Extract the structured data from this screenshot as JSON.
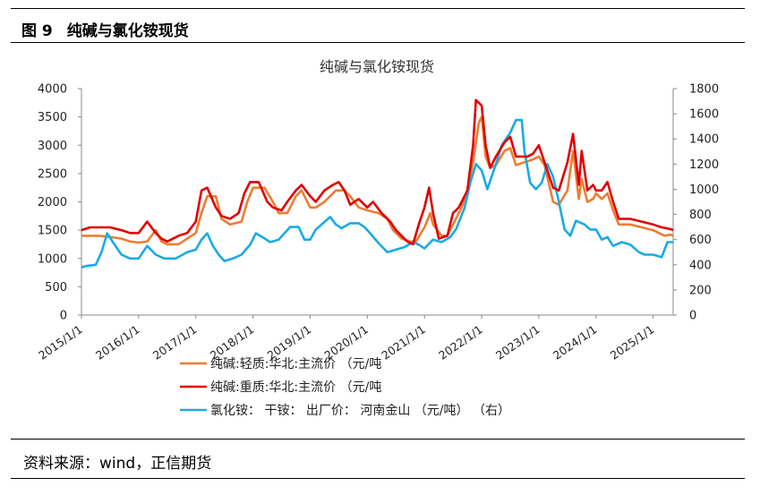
{
  "figure": {
    "number": "图 9",
    "title": "纯碱与氯化铵现货",
    "source": "资料来源：wind，正信期货"
  },
  "chart_data": {
    "type": "line",
    "title": "纯碱与氯化铵现货",
    "x_tick_labels": [
      "2015/1/1",
      "2016/1/1",
      "2017/1/1",
      "2018/1/1",
      "2019/1/1",
      "2020/1/1",
      "2021/1/1",
      "2022/1/1",
      "2023/1/1",
      "2024/1/1",
      "2025/1/1"
    ],
    "x_range": [
      2015.0,
      2025.35
    ],
    "y_left": {
      "range": [
        0,
        4000
      ],
      "ticks": [
        0,
        500,
        1000,
        1500,
        2000,
        2500,
        3000,
        3500,
        4000
      ]
    },
    "y_right": {
      "range": [
        0,
        1800
      ],
      "ticks": [
        0,
        200,
        400,
        600,
        800,
        1000,
        1200,
        1400,
        1600,
        1800
      ]
    },
    "series": [
      {
        "name": "纯碱:轻质:华北:主流价 （元/吨",
        "axis": "left",
        "color": "#ED7D31",
        "points": [
          [
            2015.0,
            1400
          ],
          [
            2015.15,
            1400
          ],
          [
            2015.3,
            1400
          ],
          [
            2015.5,
            1380
          ],
          [
            2015.7,
            1350
          ],
          [
            2015.85,
            1300
          ],
          [
            2016.0,
            1280
          ],
          [
            2016.15,
            1300
          ],
          [
            2016.3,
            1500
          ],
          [
            2016.4,
            1300
          ],
          [
            2016.5,
            1250
          ],
          [
            2016.7,
            1250
          ],
          [
            2016.85,
            1350
          ],
          [
            2017.0,
            1450
          ],
          [
            2017.1,
            1800
          ],
          [
            2017.2,
            2100
          ],
          [
            2017.35,
            2100
          ],
          [
            2017.45,
            1700
          ],
          [
            2017.6,
            1600
          ],
          [
            2017.8,
            1650
          ],
          [
            2017.9,
            2000
          ],
          [
            2018.0,
            2250
          ],
          [
            2018.2,
            2250
          ],
          [
            2018.35,
            2000
          ],
          [
            2018.45,
            1800
          ],
          [
            2018.6,
            1800
          ],
          [
            2018.75,
            2100
          ],
          [
            2018.85,
            2200
          ],
          [
            2019.0,
            1900
          ],
          [
            2019.1,
            1900
          ],
          [
            2019.25,
            2000
          ],
          [
            2019.35,
            2100
          ],
          [
            2019.45,
            2200
          ],
          [
            2019.6,
            2200
          ],
          [
            2019.7,
            2100
          ],
          [
            2019.85,
            1900
          ],
          [
            2020.0,
            1850
          ],
          [
            2020.2,
            1800
          ],
          [
            2020.35,
            1700
          ],
          [
            2020.45,
            1500
          ],
          [
            2020.6,
            1350
          ],
          [
            2020.75,
            1300
          ],
          [
            2020.85,
            1300
          ],
          [
            2021.0,
            1550
          ],
          [
            2021.1,
            1800
          ],
          [
            2021.15,
            1600
          ],
          [
            2021.3,
            1400
          ],
          [
            2021.4,
            1400
          ],
          [
            2021.55,
            1700
          ],
          [
            2021.65,
            1900
          ],
          [
            2021.75,
            2200
          ],
          [
            2021.85,
            2700
          ],
          [
            2021.95,
            3400
          ],
          [
            2022.0,
            3500
          ],
          [
            2022.07,
            2800
          ],
          [
            2022.15,
            2600
          ],
          [
            2022.25,
            2650
          ],
          [
            2022.4,
            2900
          ],
          [
            2022.5,
            2950
          ],
          [
            2022.6,
            2650
          ],
          [
            2022.75,
            2700
          ],
          [
            2022.9,
            2750
          ],
          [
            2023.0,
            2800
          ],
          [
            2023.1,
            2650
          ],
          [
            2023.25,
            2000
          ],
          [
            2023.35,
            1950
          ],
          [
            2023.5,
            2200
          ],
          [
            2023.6,
            2900
          ],
          [
            2023.7,
            2050
          ],
          [
            2023.75,
            2400
          ],
          [
            2023.85,
            2000
          ],
          [
            2023.95,
            2050
          ],
          [
            2024.0,
            2150
          ],
          [
            2024.1,
            2050
          ],
          [
            2024.2,
            2150
          ],
          [
            2024.3,
            1850
          ],
          [
            2024.4,
            1600
          ],
          [
            2024.6,
            1600
          ],
          [
            2024.8,
            1550
          ],
          [
            2025.0,
            1500
          ],
          [
            2025.1,
            1450
          ],
          [
            2025.2,
            1400
          ],
          [
            2025.3,
            1420
          ],
          [
            2025.35,
            1400
          ]
        ]
      },
      {
        "name": "纯碱:重质:华北:主流价 （元/吨",
        "axis": "left",
        "color": "#E00000",
        "points": [
          [
            2015.0,
            1500
          ],
          [
            2015.15,
            1550
          ],
          [
            2015.3,
            1550
          ],
          [
            2015.5,
            1550
          ],
          [
            2015.7,
            1500
          ],
          [
            2015.85,
            1450
          ],
          [
            2016.0,
            1450
          ],
          [
            2016.15,
            1650
          ],
          [
            2016.3,
            1450
          ],
          [
            2016.4,
            1350
          ],
          [
            2016.5,
            1300
          ],
          [
            2016.7,
            1400
          ],
          [
            2016.85,
            1450
          ],
          [
            2017.0,
            1650
          ],
          [
            2017.1,
            2200
          ],
          [
            2017.2,
            2250
          ],
          [
            2017.35,
            1900
          ],
          [
            2017.45,
            1750
          ],
          [
            2017.6,
            1700
          ],
          [
            2017.75,
            1800
          ],
          [
            2017.85,
            2150
          ],
          [
            2017.95,
            2350
          ],
          [
            2018.1,
            2350
          ],
          [
            2018.25,
            2000
          ],
          [
            2018.35,
            1900
          ],
          [
            2018.5,
            1850
          ],
          [
            2018.6,
            2000
          ],
          [
            2018.75,
            2200
          ],
          [
            2018.85,
            2300
          ],
          [
            2019.0,
            2100
          ],
          [
            2019.1,
            2000
          ],
          [
            2019.25,
            2200
          ],
          [
            2019.4,
            2300
          ],
          [
            2019.5,
            2350
          ],
          [
            2019.6,
            2200
          ],
          [
            2019.7,
            1950
          ],
          [
            2019.85,
            2050
          ],
          [
            2020.0,
            1900
          ],
          [
            2020.1,
            2000
          ],
          [
            2020.25,
            1800
          ],
          [
            2020.4,
            1650
          ],
          [
            2020.5,
            1500
          ],
          [
            2020.6,
            1400
          ],
          [
            2020.7,
            1300
          ],
          [
            2020.8,
            1250
          ],
          [
            2020.9,
            1600
          ],
          [
            2021.0,
            1900
          ],
          [
            2021.08,
            2250
          ],
          [
            2021.15,
            1800
          ],
          [
            2021.25,
            1350
          ],
          [
            2021.4,
            1400
          ],
          [
            2021.5,
            1800
          ],
          [
            2021.6,
            1900
          ],
          [
            2021.75,
            2200
          ],
          [
            2021.85,
            3000
          ],
          [
            2021.9,
            3800
          ],
          [
            2022.0,
            3700
          ],
          [
            2022.07,
            3000
          ],
          [
            2022.15,
            2600
          ],
          [
            2022.25,
            2800
          ],
          [
            2022.4,
            3050
          ],
          [
            2022.5,
            3150
          ],
          [
            2022.6,
            2800
          ],
          [
            2022.8,
            2800
          ],
          [
            2022.9,
            2850
          ],
          [
            2023.0,
            3000
          ],
          [
            2023.1,
            2700
          ],
          [
            2023.25,
            2250
          ],
          [
            2023.35,
            2200
          ],
          [
            2023.5,
            2700
          ],
          [
            2023.6,
            3200
          ],
          [
            2023.7,
            2300
          ],
          [
            2023.75,
            2900
          ],
          [
            2023.85,
            2200
          ],
          [
            2023.95,
            2300
          ],
          [
            2024.0,
            2200
          ],
          [
            2024.1,
            2200
          ],
          [
            2024.2,
            2350
          ],
          [
            2024.3,
            2000
          ],
          [
            2024.4,
            1700
          ],
          [
            2024.6,
            1700
          ],
          [
            2024.8,
            1650
          ],
          [
            2025.0,
            1600
          ],
          [
            2025.15,
            1550
          ],
          [
            2025.3,
            1520
          ],
          [
            2025.35,
            1500
          ]
        ]
      },
      {
        "name": "氯化铵： 干铵： 出厂价： 河南金山 （元/吨） （右）",
        "axis": "right",
        "color": "#1AABE3",
        "points": [
          [
            2015.0,
            380
          ],
          [
            2015.08,
            390
          ],
          [
            2015.25,
            400
          ],
          [
            2015.35,
            500
          ],
          [
            2015.45,
            650
          ],
          [
            2015.55,
            580
          ],
          [
            2015.7,
            480
          ],
          [
            2015.85,
            450
          ],
          [
            2016.0,
            450
          ],
          [
            2016.15,
            550
          ],
          [
            2016.3,
            480
          ],
          [
            2016.45,
            450
          ],
          [
            2016.65,
            450
          ],
          [
            2016.85,
            500
          ],
          [
            2017.0,
            520
          ],
          [
            2017.1,
            600
          ],
          [
            2017.2,
            650
          ],
          [
            2017.3,
            550
          ],
          [
            2017.4,
            480
          ],
          [
            2017.5,
            430
          ],
          [
            2017.65,
            450
          ],
          [
            2017.8,
            480
          ],
          [
            2017.95,
            560
          ],
          [
            2018.05,
            650
          ],
          [
            2018.2,
            610
          ],
          [
            2018.3,
            580
          ],
          [
            2018.45,
            600
          ],
          [
            2018.55,
            650
          ],
          [
            2018.65,
            700
          ],
          [
            2018.8,
            700
          ],
          [
            2018.9,
            600
          ],
          [
            2019.0,
            600
          ],
          [
            2019.1,
            680
          ],
          [
            2019.2,
            720
          ],
          [
            2019.35,
            780
          ],
          [
            2019.45,
            720
          ],
          [
            2019.55,
            690
          ],
          [
            2019.7,
            730
          ],
          [
            2019.85,
            730
          ],
          [
            2019.95,
            700
          ],
          [
            2020.05,
            650
          ],
          [
            2020.2,
            570
          ],
          [
            2020.35,
            500
          ],
          [
            2020.5,
            520
          ],
          [
            2020.65,
            540
          ],
          [
            2020.8,
            580
          ],
          [
            2020.9,
            560
          ],
          [
            2021.0,
            530
          ],
          [
            2021.15,
            600
          ],
          [
            2021.3,
            580
          ],
          [
            2021.45,
            620
          ],
          [
            2021.55,
            680
          ],
          [
            2021.7,
            850
          ],
          [
            2021.8,
            1050
          ],
          [
            2021.9,
            1200
          ],
          [
            2022.0,
            1150
          ],
          [
            2022.1,
            1000
          ],
          [
            2022.25,
            1200
          ],
          [
            2022.35,
            1350
          ],
          [
            2022.5,
            1450
          ],
          [
            2022.6,
            1550
          ],
          [
            2022.7,
            1550
          ],
          [
            2022.75,
            1300
          ],
          [
            2022.85,
            1050
          ],
          [
            2022.95,
            1000
          ],
          [
            2023.05,
            1050
          ],
          [
            2023.15,
            1200
          ],
          [
            2023.25,
            1100
          ],
          [
            2023.35,
            900
          ],
          [
            2023.45,
            680
          ],
          [
            2023.55,
            630
          ],
          [
            2023.65,
            750
          ],
          [
            2023.8,
            720
          ],
          [
            2023.9,
            680
          ],
          [
            2024.0,
            680
          ],
          [
            2024.1,
            600
          ],
          [
            2024.2,
            620
          ],
          [
            2024.3,
            550
          ],
          [
            2024.45,
            580
          ],
          [
            2024.6,
            560
          ],
          [
            2024.75,
            500
          ],
          [
            2024.85,
            480
          ],
          [
            2025.0,
            480
          ],
          [
            2025.15,
            460
          ],
          [
            2025.25,
            580
          ],
          [
            2025.35,
            580
          ]
        ]
      }
    ]
  }
}
